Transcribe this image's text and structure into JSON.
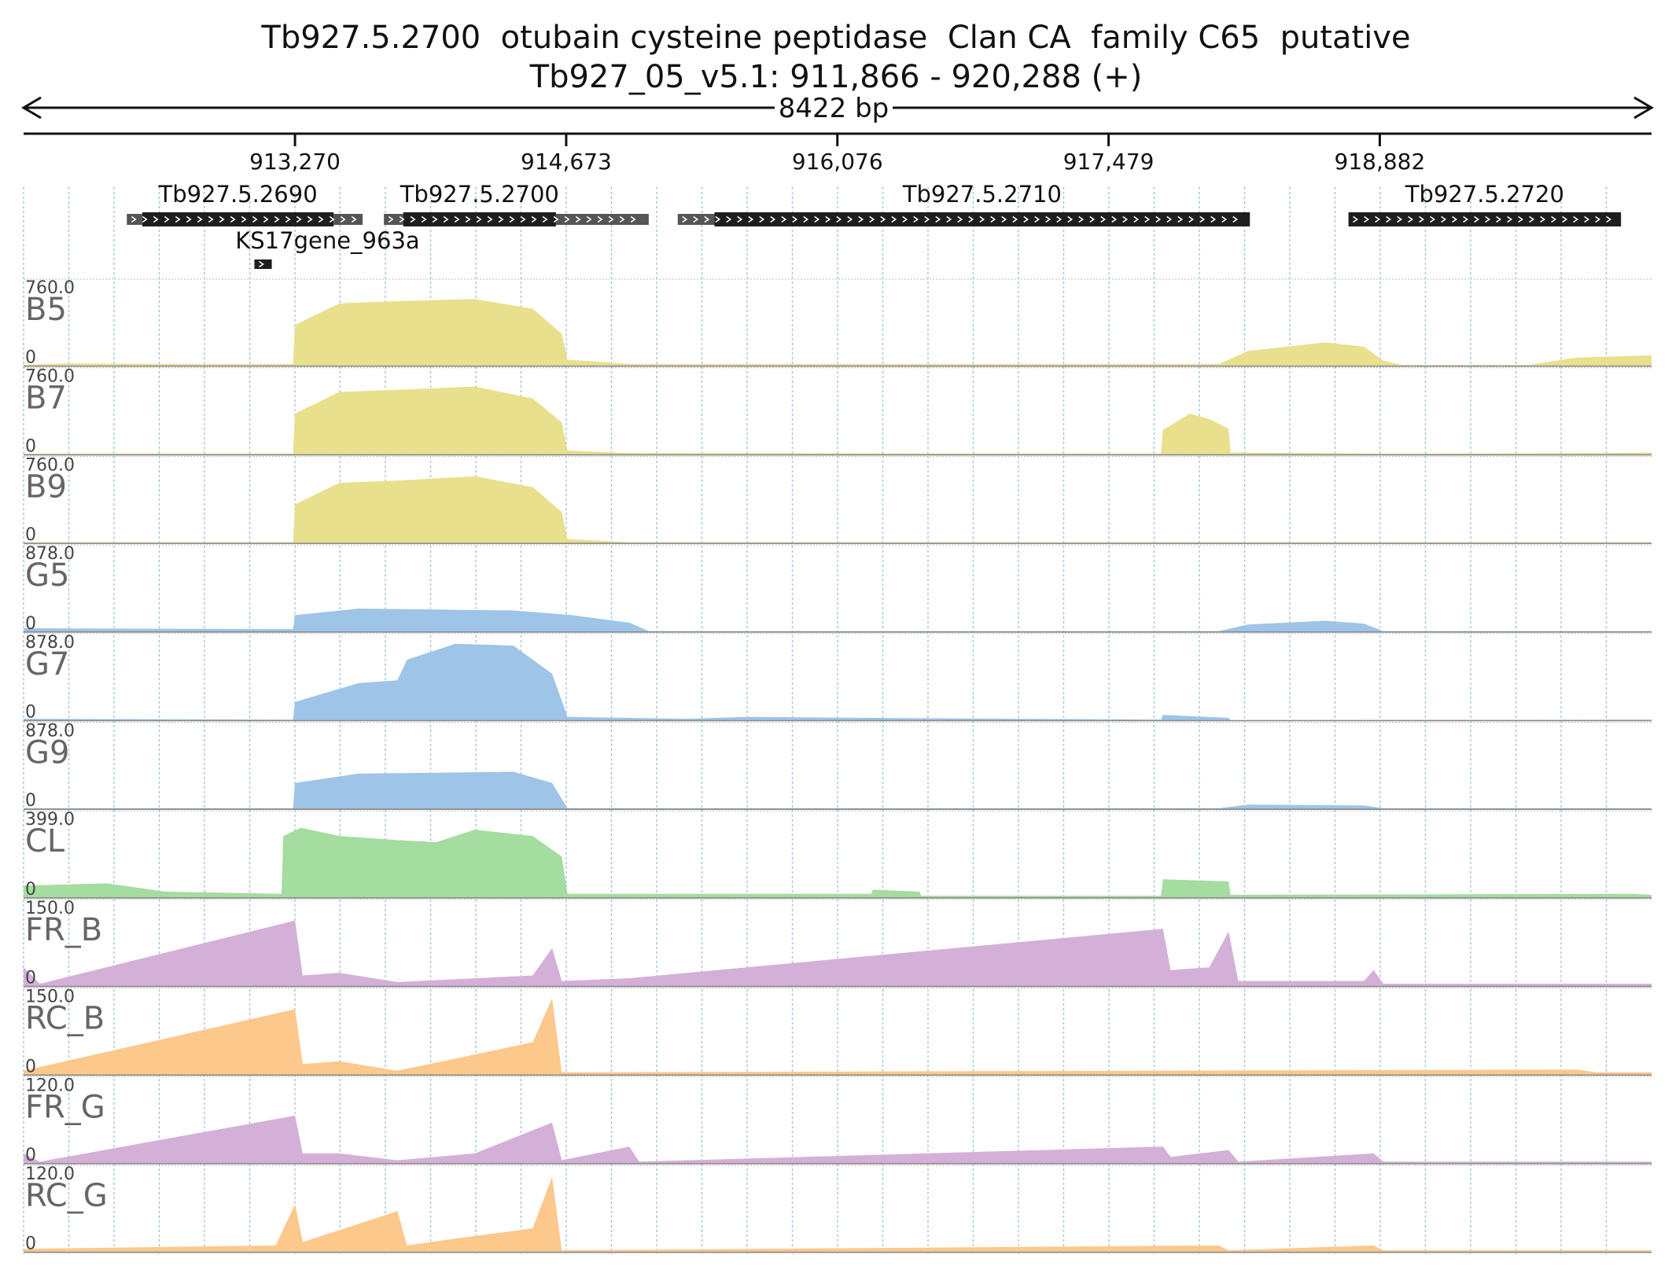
{
  "title": "Tb927.5.2700  otubain cysteine peptidase  Clan CA  family C65  putative",
  "locus": "Tb927_05_v5.1: 911,866 - 920,288 (+)",
  "span_label": "8422 bp",
  "region": {
    "chrom": "Tb927_05_v5.1",
    "start": 911866,
    "end": 920288,
    "strand": "+"
  },
  "ruler_ticks": [
    {
      "pos": 913270,
      "label": "913,270"
    },
    {
      "pos": 914673,
      "label": "914,673"
    },
    {
      "pos": 916076,
      "label": "916,076"
    },
    {
      "pos": 917479,
      "label": "917,479"
    },
    {
      "pos": 918882,
      "label": "918,882"
    }
  ],
  "genes": [
    {
      "name": "Tb927.5.2690",
      "start": 912400,
      "end": 912930,
      "cds_start": 912480,
      "cds_end": 913470,
      "utr_end": 913620,
      "row": 0
    },
    {
      "name": "Tb927.5.2700",
      "start": 913730,
      "end": 913830,
      "cds_start": 913830,
      "cds_end": 914620,
      "utr_end": 915100,
      "row": 0
    },
    {
      "name": "Tb927.5.2710",
      "start": 915250,
      "end": 915440,
      "cds_start": 915440,
      "cds_end": 918210,
      "utr_end": 918210,
      "row": 0
    },
    {
      "name": "Tb927.5.2720",
      "start": 918720,
      "end": 918720,
      "cds_start": 918720,
      "cds_end": 920130,
      "utr_end": 920130,
      "row": 0
    },
    {
      "name": "KS17gene_963a",
      "start": 913060,
      "end": 913060,
      "cds_start": 913060,
      "cds_end": 913150,
      "utr_end": 913150,
      "row": 1
    }
  ],
  "gene_display_names": {
    "g1": "Tb927.5.2690",
    "g2": "Tb927.5.2700",
    "g3": "Tb927.5.2710",
    "g4": "Tb927.5.2720",
    "g5": "KS17gene_963a"
  },
  "colors": {
    "yellow": "#e8e08c",
    "blue": "#9ec4e8",
    "green": "#a5dca0",
    "purple": "#d4b0d8",
    "orange": "#fcc88c",
    "gene": "#1e1e1e",
    "utr": "#555555",
    "grid": "#9cc4e4"
  },
  "tracks": [
    {
      "name": "B5",
      "max_label": "760.0",
      "min_label": "0",
      "max": 760,
      "color": "yellow",
      "profile": [
        [
          911866,
          15
        ],
        [
          912100,
          25
        ],
        [
          912800,
          20
        ],
        [
          913260,
          20
        ],
        [
          913270,
          380
        ],
        [
          913500,
          580
        ],
        [
          913800,
          600
        ],
        [
          914200,
          620
        ],
        [
          914500,
          530
        ],
        [
          914650,
          300
        ],
        [
          914680,
          60
        ],
        [
          915000,
          20
        ],
        [
          918050,
          20
        ],
        [
          918200,
          140
        ],
        [
          918600,
          220
        ],
        [
          918800,
          180
        ],
        [
          918900,
          50
        ],
        [
          919000,
          10
        ],
        [
          919650,
          10
        ],
        [
          919900,
          80
        ],
        [
          920288,
          100
        ]
      ]
    },
    {
      "name": "B7",
      "max_label": "760.0",
      "min_label": "0",
      "max": 760,
      "color": "yellow",
      "profile": [
        [
          911866,
          10
        ],
        [
          913260,
          10
        ],
        [
          913270,
          380
        ],
        [
          913500,
          580
        ],
        [
          913800,
          600
        ],
        [
          914200,
          630
        ],
        [
          914500,
          520
        ],
        [
          914650,
          300
        ],
        [
          914680,
          40
        ],
        [
          915000,
          15
        ],
        [
          917750,
          10
        ],
        [
          917760,
          230
        ],
        [
          917900,
          380
        ],
        [
          918000,
          330
        ],
        [
          918100,
          240
        ],
        [
          918110,
          20
        ],
        [
          919000,
          10
        ],
        [
          920000,
          15
        ],
        [
          920288,
          20
        ]
      ]
    },
    {
      "name": "B9",
      "max_label": "760.0",
      "min_label": "0",
      "max": 760,
      "color": "yellow",
      "profile": [
        [
          911866,
          10
        ],
        [
          913260,
          10
        ],
        [
          913270,
          360
        ],
        [
          913500,
          560
        ],
        [
          913800,
          580
        ],
        [
          914200,
          620
        ],
        [
          914500,
          520
        ],
        [
          914650,
          290
        ],
        [
          914680,
          40
        ],
        [
          915000,
          10
        ],
        [
          920288,
          10
        ]
      ]
    },
    {
      "name": "G5",
      "max_label": "878.0",
      "min_label": "0",
      "max": 878,
      "color": "blue",
      "profile": [
        [
          911866,
          40
        ],
        [
          913260,
          30
        ],
        [
          913270,
          180
        ],
        [
          913600,
          250
        ],
        [
          914000,
          240
        ],
        [
          914400,
          230
        ],
        [
          914700,
          180
        ],
        [
          915000,
          100
        ],
        [
          915100,
          10
        ],
        [
          918050,
          10
        ],
        [
          918200,
          80
        ],
        [
          918600,
          120
        ],
        [
          918800,
          90
        ],
        [
          918900,
          10
        ],
        [
          920288,
          10
        ]
      ]
    },
    {
      "name": "G7",
      "max_label": "878.0",
      "min_label": "0",
      "max": 878,
      "color": "blue",
      "profile": [
        [
          911866,
          20
        ],
        [
          913260,
          10
        ],
        [
          913270,
          200
        ],
        [
          913600,
          400
        ],
        [
          913800,
          430
        ],
        [
          913850,
          650
        ],
        [
          914100,
          820
        ],
        [
          914400,
          800
        ],
        [
          914600,
          500
        ],
        [
          914680,
          40
        ],
        [
          915300,
          20
        ],
        [
          915600,
          40
        ],
        [
          916200,
          30
        ],
        [
          917750,
          10
        ],
        [
          917760,
          60
        ],
        [
          918100,
          30
        ],
        [
          918110,
          5
        ],
        [
          920288,
          10
        ]
      ]
    },
    {
      "name": "G9",
      "max_label": "878.0",
      "min_label": "0",
      "max": 878,
      "color": "blue",
      "profile": [
        [
          911866,
          10
        ],
        [
          913260,
          10
        ],
        [
          913270,
          280
        ],
        [
          913600,
          380
        ],
        [
          914000,
          390
        ],
        [
          914400,
          400
        ],
        [
          914600,
          280
        ],
        [
          914680,
          10
        ],
        [
          918050,
          10
        ],
        [
          918200,
          50
        ],
        [
          918800,
          40
        ],
        [
          918900,
          10
        ],
        [
          920288,
          10
        ]
      ]
    },
    {
      "name": "CL",
      "max_label": "399.0",
      "min_label": "0",
      "max": 399,
      "color": "green",
      "profile": [
        [
          911866,
          60
        ],
        [
          912300,
          70
        ],
        [
          912600,
          30
        ],
        [
          913200,
          20
        ],
        [
          913210,
          300
        ],
        [
          913300,
          340
        ],
        [
          913500,
          300
        ],
        [
          913800,
          280
        ],
        [
          914000,
          270
        ],
        [
          914200,
          330
        ],
        [
          914500,
          300
        ],
        [
          914650,
          200
        ],
        [
          914680,
          20
        ],
        [
          916250,
          20
        ],
        [
          916260,
          40
        ],
        [
          916500,
          30
        ],
        [
          916510,
          10
        ],
        [
          917750,
          10
        ],
        [
          917760,
          90
        ],
        [
          918100,
          80
        ],
        [
          918110,
          15
        ],
        [
          920200,
          20
        ],
        [
          920288,
          15
        ]
      ]
    },
    {
      "name": "FR_B",
      "max_label": "150.0",
      "min_label": "0",
      "max": 150,
      "color": "purple",
      "profile": [
        [
          911866,
          35
        ],
        [
          911950,
          5
        ],
        [
          913270,
          120
        ],
        [
          913310,
          20
        ],
        [
          913500,
          25
        ],
        [
          913800,
          8
        ],
        [
          914200,
          15
        ],
        [
          914500,
          20
        ],
        [
          914600,
          70
        ],
        [
          914650,
          10
        ],
        [
          915000,
          15
        ],
        [
          917760,
          105
        ],
        [
          917800,
          30
        ],
        [
          918000,
          35
        ],
        [
          918100,
          100
        ],
        [
          918150,
          10
        ],
        [
          918800,
          10
        ],
        [
          918850,
          30
        ],
        [
          918900,
          5
        ],
        [
          920288,
          5
        ]
      ]
    },
    {
      "name": "RC_B",
      "max_label": "150.0",
      "min_label": "0",
      "max": 150,
      "color": "orange",
      "profile": [
        [
          911866,
          8
        ],
        [
          913270,
          120
        ],
        [
          913310,
          20
        ],
        [
          913500,
          25
        ],
        [
          913800,
          8
        ],
        [
          914100,
          30
        ],
        [
          914500,
          60
        ],
        [
          914600,
          140
        ],
        [
          914650,
          5
        ],
        [
          919900,
          10
        ],
        [
          920000,
          5
        ],
        [
          920288,
          5
        ]
      ]
    },
    {
      "name": "FR_G",
      "max_label": "120.0",
      "min_label": "0",
      "max": 120,
      "color": "purple",
      "profile": [
        [
          911866,
          15
        ],
        [
          911950,
          3
        ],
        [
          913270,
          70
        ],
        [
          913310,
          15
        ],
        [
          913500,
          15
        ],
        [
          913800,
          5
        ],
        [
          914200,
          15
        ],
        [
          914600,
          60
        ],
        [
          914650,
          5
        ],
        [
          915000,
          25
        ],
        [
          915050,
          3
        ],
        [
          917760,
          25
        ],
        [
          917800,
          10
        ],
        [
          918100,
          20
        ],
        [
          918150,
          3
        ],
        [
          918850,
          15
        ],
        [
          918900,
          3
        ],
        [
          920288,
          3
        ]
      ]
    },
    {
      "name": "RC_G",
      "max_label": "120.0",
      "min_label": "0",
      "max": 120,
      "color": "orange",
      "profile": [
        [
          911866,
          5
        ],
        [
          913170,
          10
        ],
        [
          913270,
          70
        ],
        [
          913310,
          15
        ],
        [
          913800,
          60
        ],
        [
          913850,
          10
        ],
        [
          914100,
          20
        ],
        [
          914500,
          35
        ],
        [
          914600,
          110
        ],
        [
          914650,
          3
        ],
        [
          918050,
          10
        ],
        [
          918100,
          3
        ],
        [
          918850,
          10
        ],
        [
          918900,
          3
        ],
        [
          920288,
          3
        ]
      ]
    }
  ]
}
